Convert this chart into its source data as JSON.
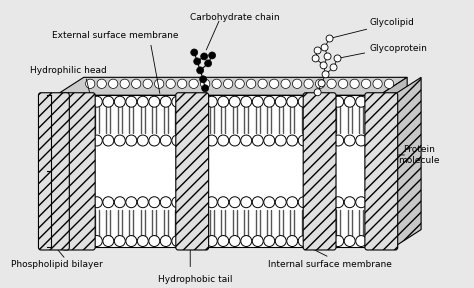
{
  "labels": {
    "carbohydrate_chain": "Carbohydrate chain",
    "external_surface": "External surface membrane",
    "hydrophilic_head": "Hydrophilic head",
    "glycolipid": "Glycolipid",
    "glycoprotein": "Glycoprotein",
    "protein_molecule": "Protein\nmolecule",
    "phospholipid_bilayer": "Phospholipid bilayer",
    "hydrophobic_tail": "Hydrophobic tail",
    "internal_surface": "Internal surface membrane"
  },
  "figsize": [
    4.74,
    2.88
  ],
  "dpi": 100,
  "bg_color": "#e8e8e8"
}
